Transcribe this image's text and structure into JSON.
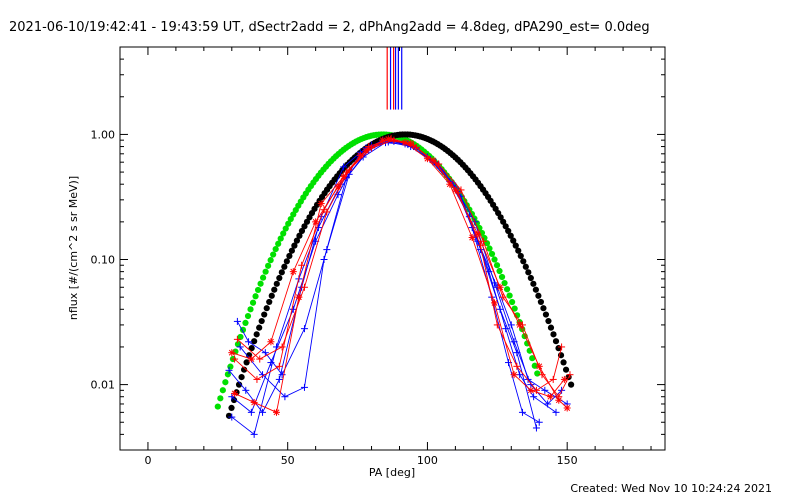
{
  "chart_data": {
    "type": "line",
    "title": "2021-06-10/19:42:41 - 19:43:59 UT, dSectr2add = 2, dPhAng2add = 4.8deg, dPA290_est=  0.0deg",
    "xlabel": "PA [deg]",
    "ylabel": "nflux [#/(cm^2 s sr MeV)]",
    "xlim": [
      -10,
      185
    ],
    "ylim": [
      0.003,
      5
    ],
    "yscale": "log",
    "x_ticks": [
      0,
      50,
      100,
      150
    ],
    "y_ticks": [
      {
        "value": 0.01,
        "label": "0.01"
      },
      {
        "value": 0.1,
        "label": "0.10"
      },
      {
        "value": 1.0,
        "label": "1.00"
      }
    ],
    "footer": "Created: Wed Nov 10 10:24:24 2021",
    "colors": {
      "red": "#ff0000",
      "blue": "#0000ff",
      "green": "#00e000",
      "black": "#000000"
    },
    "vertical_markers": [
      {
        "x": 85.6,
        "color": "#ff0000"
      },
      {
        "x": 86.8,
        "color": "#0000ff"
      },
      {
        "x": 87.9,
        "color": "#ff0000"
      },
      {
        "x": 88.6,
        "color": "#0000ff"
      },
      {
        "x": 89.6,
        "color": "#0000ff"
      },
      {
        "x": 90.8,
        "color": "#0000ff"
      }
    ],
    "fits": [
      {
        "color": "#00e000",
        "center": 84,
        "width": 40,
        "xmin": 25,
        "xmax": 140
      },
      {
        "color": "#000000",
        "center": 92,
        "width": 42,
        "xmin": 29,
        "xmax": 152
      }
    ],
    "series": [
      {
        "color": "#0000ff",
        "marker": "plus",
        "points": [
          [
            32,
            0.032
          ],
          [
            36,
            0.022
          ],
          [
            42,
            0.018
          ],
          [
            48,
            0.012
          ],
          [
            56,
            0.028
          ],
          [
            64,
            0.12
          ],
          [
            72,
            0.48
          ],
          [
            80,
            0.82
          ],
          [
            88,
            0.88
          ],
          [
            96,
            0.78
          ],
          [
            104,
            0.58
          ],
          [
            112,
            0.32
          ],
          [
            118,
            0.14
          ],
          [
            125,
            0.06
          ],
          [
            130,
            0.03
          ],
          [
            136,
            0.011
          ],
          [
            142,
            0.009
          ],
          [
            150,
            0.007
          ]
        ]
      },
      {
        "color": "#0000ff",
        "marker": "plus",
        "points": [
          [
            30,
            0.008
          ],
          [
            37,
            0.006
          ],
          [
            44,
            0.015
          ],
          [
            52,
            0.04
          ],
          [
            60,
            0.14
          ],
          [
            68,
            0.33
          ],
          [
            76,
            0.72
          ],
          [
            84,
            0.9
          ],
          [
            92,
            0.84
          ],
          [
            100,
            0.66
          ],
          [
            108,
            0.42
          ],
          [
            115,
            0.22
          ],
          [
            122,
            0.08
          ],
          [
            128,
            0.028
          ],
          [
            133,
            0.012
          ],
          [
            138,
            0.008
          ],
          [
            146,
            0.006
          ]
        ]
      },
      {
        "color": "#0000ff",
        "marker": "plus",
        "points": [
          [
            29,
            0.013
          ],
          [
            35,
            0.009
          ],
          [
            41,
            0.006
          ],
          [
            47,
            0.011
          ],
          [
            55,
            0.06
          ],
          [
            62,
            0.22
          ],
          [
            70,
            0.55
          ],
          [
            78,
            0.78
          ],
          [
            86,
            0.87
          ],
          [
            94,
            0.8
          ],
          [
            102,
            0.6
          ],
          [
            110,
            0.38
          ],
          [
            116,
            0.18
          ],
          [
            123,
            0.05
          ],
          [
            129,
            0.015
          ],
          [
            134,
            0.006
          ],
          [
            140,
            0.005
          ]
        ]
      },
      {
        "color": "#0000ff",
        "marker": "plus",
        "points": [
          [
            30,
            0.0055
          ],
          [
            38,
            0.004
          ],
          [
            46,
            0.02
          ],
          [
            54,
            0.07
          ],
          [
            61,
            0.18
          ],
          [
            69,
            0.4
          ],
          [
            77,
            0.66
          ],
          [
            85,
            0.86
          ],
          [
            93,
            0.83
          ],
          [
            101,
            0.63
          ],
          [
            109,
            0.41
          ],
          [
            117,
            0.2
          ],
          [
            124,
            0.065
          ],
          [
            131,
            0.022
          ],
          [
            137,
            0.01
          ],
          [
            143,
            0.007
          ],
          [
            148,
            0.009
          ]
        ]
      },
      {
        "color": "#0000ff",
        "marker": "plus",
        "points": [
          [
            33,
            0.02
          ],
          [
            41,
            0.012
          ],
          [
            49,
            0.008
          ],
          [
            56,
            0.0095
          ],
          [
            63,
            0.1
          ],
          [
            71,
            0.45
          ],
          [
            79,
            0.75
          ],
          [
            87,
            0.9
          ],
          [
            95,
            0.8
          ],
          [
            103,
            0.6
          ],
          [
            111,
            0.35
          ],
          [
            119,
            0.12
          ],
          [
            126,
            0.04
          ],
          [
            132,
            0.018
          ],
          [
            139,
            0.0045
          ]
        ]
      },
      {
        "color": "#ff0000",
        "marker": "star",
        "points": [
          [
            31,
            0.0085
          ],
          [
            38,
            0.0072
          ],
          [
            46,
            0.006
          ],
          [
            54,
            0.05
          ],
          [
            62,
            0.28
          ],
          [
            70,
            0.46
          ],
          [
            78,
            0.74
          ],
          [
            86,
            0.92
          ],
          [
            94,
            0.85
          ],
          [
            102,
            0.62
          ],
          [
            110,
            0.36
          ],
          [
            118,
            0.16
          ],
          [
            126,
            0.06
          ],
          [
            133,
            0.03
          ],
          [
            140,
            0.014
          ],
          [
            147,
            0.0075
          ],
          [
            150,
            0.0065
          ]
        ]
      },
      {
        "color": "#ff0000",
        "marker": "star",
        "points": [
          [
            30,
            0.018
          ],
          [
            37,
            0.016
          ],
          [
            44,
            0.022
          ],
          [
            52,
            0.08
          ],
          [
            60,
            0.2
          ],
          [
            68,
            0.38
          ],
          [
            76,
            0.68
          ],
          [
            84,
            0.9
          ],
          [
            92,
            0.86
          ],
          [
            100,
            0.64
          ],
          [
            108,
            0.4
          ],
          [
            116,
            0.15
          ],
          [
            124,
            0.045
          ],
          [
            131,
            0.012
          ],
          [
            137,
            0.009
          ],
          [
            144,
            0.008
          ],
          [
            149,
            0.011
          ]
        ]
      },
      {
        "color": "#ff0000",
        "marker": "plus",
        "points": [
          [
            31,
            0.016
          ],
          [
            39,
            0.011
          ],
          [
            47,
            0.014
          ],
          [
            55,
            0.09
          ],
          [
            63,
            0.25
          ],
          [
            71,
            0.5
          ],
          [
            79,
            0.8
          ],
          [
            87,
            0.93
          ],
          [
            95,
            0.82
          ],
          [
            103,
            0.59
          ],
          [
            111,
            0.34
          ],
          [
            119,
            0.13
          ],
          [
            125,
            0.03
          ],
          [
            132,
            0.014
          ],
          [
            139,
            0.009
          ],
          [
            145,
            0.011
          ],
          [
            148,
            0.02
          ]
        ]
      },
      {
        "color": "#ff0000",
        "marker": "plus",
        "points": [
          [
            32,
            0.023
          ],
          [
            40,
            0.016
          ],
          [
            48,
            0.02
          ],
          [
            56,
            0.06
          ],
          [
            64,
            0.24
          ],
          [
            72,
            0.52
          ],
          [
            80,
            0.78
          ],
          [
            88,
            0.9
          ],
          [
            96,
            0.79
          ],
          [
            104,
            0.58
          ],
          [
            112,
            0.36
          ],
          [
            120,
            0.14
          ],
          [
            127,
            0.05
          ],
          [
            134,
            0.03
          ],
          [
            141,
            0.012
          ],
          [
            147,
            0.008
          ],
          [
            151,
            0.012
          ]
        ]
      }
    ]
  }
}
